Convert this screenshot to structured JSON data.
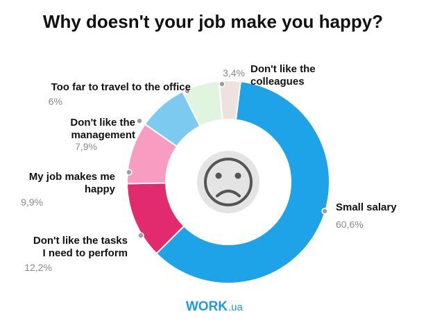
{
  "colors": {
    "small_salary": "#1ea3e9",
    "tasks": "#e22a6e",
    "happy": "#f99cc1",
    "management": "#7ccaf0",
    "travel": "#dff5e0",
    "colleagues": "#ede2de",
    "center_icon": "#c4c4c4",
    "leader_dot": "#9e9e9e"
  },
  "center_icon": "sad-face-icon",
  "logo": {
    "main": "WORK",
    "sub": ".ua"
  },
  "chart_data": {
    "type": "pie",
    "variant": "donut",
    "title": "Why doesn't your job make you happy?",
    "slices": [
      {
        "label": [
          "Small salary"
        ],
        "value": 60.6,
        "value_text": "60,6%",
        "color_key": "small_salary"
      },
      {
        "label": [
          "Don't like the tasks",
          "I need to perform"
        ],
        "value": 12.2,
        "value_text": "12,2%",
        "color_key": "tasks"
      },
      {
        "label": [
          "My job makes me",
          "happy"
        ],
        "value": 9.9,
        "value_text": "9,9%",
        "color_key": "happy"
      },
      {
        "label": [
          "Don't like the",
          "management"
        ],
        "value": 7.9,
        "value_text": "7,9%",
        "color_key": "management"
      },
      {
        "label": [
          "Too far to travel to the office"
        ],
        "value": 6,
        "value_text": "6%",
        "color_key": "travel"
      },
      {
        "label": [
          "Don't like the",
          "colleagues"
        ],
        "value": 3.4,
        "value_text": "3,4%",
        "color_key": "colleagues"
      }
    ]
  }
}
